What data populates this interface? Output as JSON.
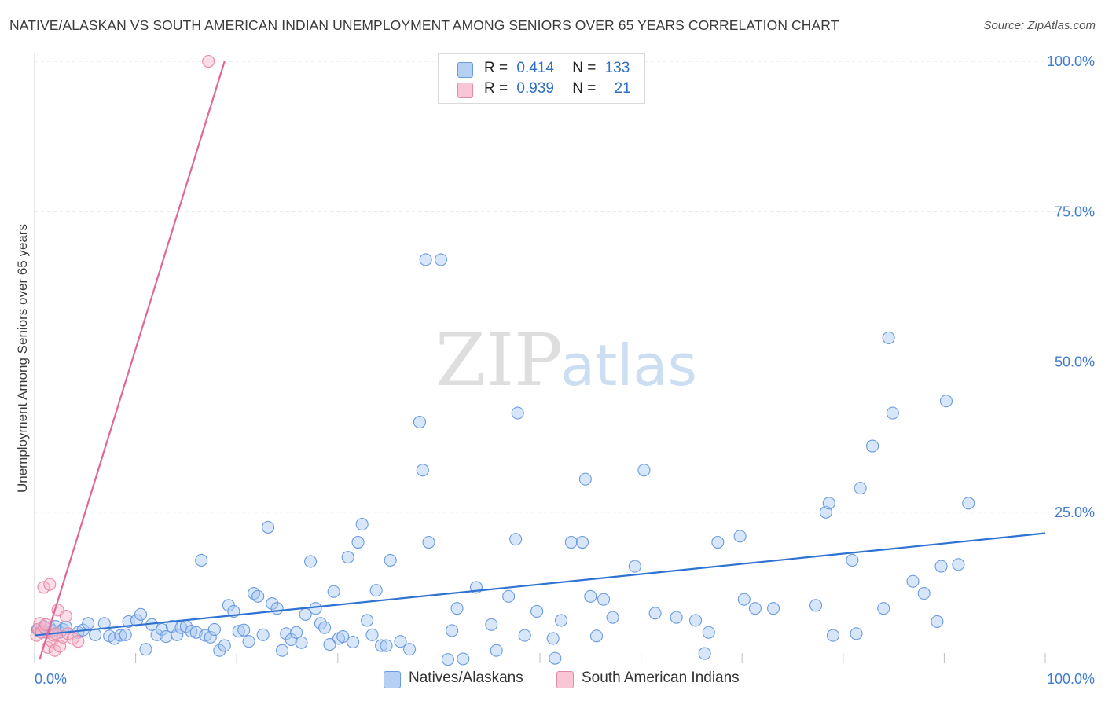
{
  "title": "NATIVE/ALASKAN VS SOUTH AMERICAN INDIAN UNEMPLOYMENT AMONG SENIORS OVER 65 YEARS CORRELATION CHART",
  "source": "Source: ZipAtlas.com",
  "watermark": {
    "zip": "ZIP",
    "atlas": "atlas"
  },
  "legend": {
    "r_label": "R =",
    "n_label": "N =",
    "items": [
      {
        "name": "Natives/Alaskans",
        "r": "0.414",
        "n": "133",
        "fill": "#a9c8f2",
        "stroke": "#6a9be0"
      },
      {
        "name": "South American Indians",
        "r": "0.939",
        "n": "21",
        "fill": "#f7b6c9",
        "stroke": "#e889a6"
      }
    ]
  },
  "colors": {
    "blue_line": "#2e72d2",
    "pink_line": "#e0679a",
    "grid": "#e3e3e3",
    "tick_label": "#3f7bd0",
    "axis_tick_color": "#2f6fbf"
  },
  "chart_data": {
    "type": "scatter",
    "title": "NATIVE/ALASKAN VS SOUTH AMERICAN INDIAN UNEMPLOYMENT AMONG SENIORS OVER 65 YEARS CORRELATION CHART",
    "xlabel": "",
    "ylabel": "Unemployment Among Seniors over 65 years",
    "xlim": [
      0,
      100
    ],
    "ylim": [
      0,
      100
    ],
    "x_tick_labels": [
      "0.0%",
      "100.0%"
    ],
    "y_tick_labels": [
      "25.0%",
      "50.0%",
      "75.0%",
      "100.0%"
    ],
    "y_ticks": [
      25,
      50,
      75,
      100
    ],
    "grid": true,
    "series": [
      {
        "name": "Natives/Alaskans",
        "r": 0.414,
        "n": 133,
        "trendline": {
          "x": [
            0,
            100
          ],
          "y": [
            4.5,
            21.5
          ]
        },
        "points": [
          [
            0.3,
            5.5
          ],
          [
            0.6,
            5.2
          ],
          [
            0.9,
            6.0
          ],
          [
            1.2,
            5.0
          ],
          [
            1.5,
            5.8
          ],
          [
            1.8,
            5.3
          ],
          [
            2.1,
            6.0
          ],
          [
            2.5,
            5.0
          ],
          [
            2.8,
            5.5
          ],
          [
            3.1,
            5.9
          ],
          [
            4.3,
            5.0
          ],
          [
            4.8,
            5.4
          ],
          [
            5.3,
            6.5
          ],
          [
            6.0,
            4.6
          ],
          [
            6.9,
            6.5
          ],
          [
            7.4,
            4.4
          ],
          [
            7.9,
            4.0
          ],
          [
            8.5,
            4.5
          ],
          [
            9.0,
            4.6
          ],
          [
            9.3,
            6.8
          ],
          [
            10.1,
            7.0
          ],
          [
            10.5,
            8.0
          ],
          [
            11.0,
            2.2
          ],
          [
            11.6,
            6.3
          ],
          [
            12.1,
            4.6
          ],
          [
            12.6,
            5.5
          ],
          [
            13.0,
            4.3
          ],
          [
            13.6,
            6.0
          ],
          [
            14.1,
            4.6
          ],
          [
            14.5,
            5.8
          ],
          [
            15.0,
            6.0
          ],
          [
            15.5,
            5.2
          ],
          [
            16.0,
            5.0
          ],
          [
            16.5,
            17.0
          ],
          [
            16.9,
            4.5
          ],
          [
            17.4,
            4.2
          ],
          [
            17.8,
            5.5
          ],
          [
            18.3,
            2.0
          ],
          [
            18.8,
            2.8
          ],
          [
            19.2,
            9.5
          ],
          [
            19.7,
            8.5
          ],
          [
            20.2,
            5.2
          ],
          [
            20.7,
            5.4
          ],
          [
            21.2,
            3.5
          ],
          [
            21.7,
            11.5
          ],
          [
            22.1,
            11.0
          ],
          [
            22.6,
            4.6
          ],
          [
            23.1,
            22.5
          ],
          [
            23.5,
            9.8
          ],
          [
            24.0,
            9.0
          ],
          [
            24.5,
            2.0
          ],
          [
            24.9,
            4.8
          ],
          [
            25.4,
            3.8
          ],
          [
            25.9,
            5.0
          ],
          [
            26.4,
            3.3
          ],
          [
            26.8,
            8.0
          ],
          [
            27.3,
            16.8
          ],
          [
            27.8,
            9.0
          ],
          [
            28.3,
            6.5
          ],
          [
            28.7,
            5.8
          ],
          [
            29.2,
            3.0
          ],
          [
            29.6,
            11.8
          ],
          [
            30.1,
            4.0
          ],
          [
            30.5,
            4.3
          ],
          [
            31.0,
            17.5
          ],
          [
            31.5,
            3.4
          ],
          [
            32.0,
            20.0
          ],
          [
            32.4,
            23.0
          ],
          [
            32.9,
            7.0
          ],
          [
            33.4,
            4.6
          ],
          [
            33.8,
            12.0
          ],
          [
            34.3,
            2.8
          ],
          [
            34.8,
            2.8
          ],
          [
            35.2,
            17.0
          ],
          [
            36.2,
            3.5
          ],
          [
            37.1,
            2.2
          ],
          [
            38.1,
            40.0
          ],
          [
            38.4,
            32.0
          ],
          [
            38.7,
            67.0
          ],
          [
            39.0,
            20.0
          ],
          [
            40.2,
            67.0
          ],
          [
            40.9,
            0.5
          ],
          [
            41.3,
            5.3
          ],
          [
            41.8,
            9.0
          ],
          [
            42.4,
            0.6
          ],
          [
            43.7,
            12.5
          ],
          [
            45.2,
            6.3
          ],
          [
            45.7,
            2.0
          ],
          [
            46.9,
            11.0
          ],
          [
            47.6,
            20.5
          ],
          [
            47.8,
            41.5
          ],
          [
            48.5,
            4.5
          ],
          [
            49.7,
            8.5
          ],
          [
            51.3,
            4.0
          ],
          [
            51.5,
            0.7
          ],
          [
            52.1,
            7.0
          ],
          [
            53.1,
            20.0
          ],
          [
            54.2,
            20.0
          ],
          [
            54.5,
            30.5
          ],
          [
            55.0,
            11.0
          ],
          [
            55.6,
            4.4
          ],
          [
            56.3,
            10.5
          ],
          [
            57.2,
            7.5
          ],
          [
            59.4,
            16.0
          ],
          [
            60.3,
            32.0
          ],
          [
            61.4,
            8.2
          ],
          [
            63.5,
            7.5
          ],
          [
            65.4,
            7.0
          ],
          [
            66.3,
            1.5
          ],
          [
            66.7,
            5.0
          ],
          [
            67.6,
            20.0
          ],
          [
            69.8,
            21.0
          ],
          [
            70.2,
            10.5
          ],
          [
            71.3,
            9.0
          ],
          [
            73.1,
            9.0
          ],
          [
            77.3,
            9.5
          ],
          [
            78.3,
            25.0
          ],
          [
            78.6,
            26.5
          ],
          [
            79.0,
            4.5
          ],
          [
            80.9,
            17.0
          ],
          [
            81.3,
            4.8
          ],
          [
            81.7,
            29.0
          ],
          [
            82.9,
            36.0
          ],
          [
            84.0,
            9.0
          ],
          [
            84.5,
            54.0
          ],
          [
            84.9,
            41.5
          ],
          [
            86.9,
            13.5
          ],
          [
            88.0,
            11.5
          ],
          [
            89.3,
            6.8
          ],
          [
            89.7,
            16.0
          ],
          [
            90.2,
            43.5
          ],
          [
            91.4,
            16.3
          ],
          [
            92.4,
            26.5
          ]
        ]
      },
      {
        "name": "South American Indians",
        "r": 0.939,
        "n": 21,
        "trendline": {
          "x": [
            0.5,
            18.8
          ],
          "y": [
            0.5,
            100
          ]
        },
        "points": [
          [
            0.2,
            4.5
          ],
          [
            0.4,
            5.5
          ],
          [
            0.5,
            6.5
          ],
          [
            0.7,
            5.0
          ],
          [
            0.9,
            12.5
          ],
          [
            1.0,
            5.8
          ],
          [
            1.1,
            6.3
          ],
          [
            1.3,
            2.5
          ],
          [
            1.5,
            13.0
          ],
          [
            1.7,
            3.5
          ],
          [
            1.9,
            4.5
          ],
          [
            2.0,
            2.0
          ],
          [
            2.1,
            4.8
          ],
          [
            2.3,
            8.7
          ],
          [
            2.5,
            2.7
          ],
          [
            2.8,
            4.2
          ],
          [
            3.1,
            7.7
          ],
          [
            3.3,
            4.8
          ],
          [
            3.8,
            4.0
          ],
          [
            4.3,
            3.5
          ],
          [
            17.2,
            100.0
          ]
        ]
      }
    ]
  }
}
